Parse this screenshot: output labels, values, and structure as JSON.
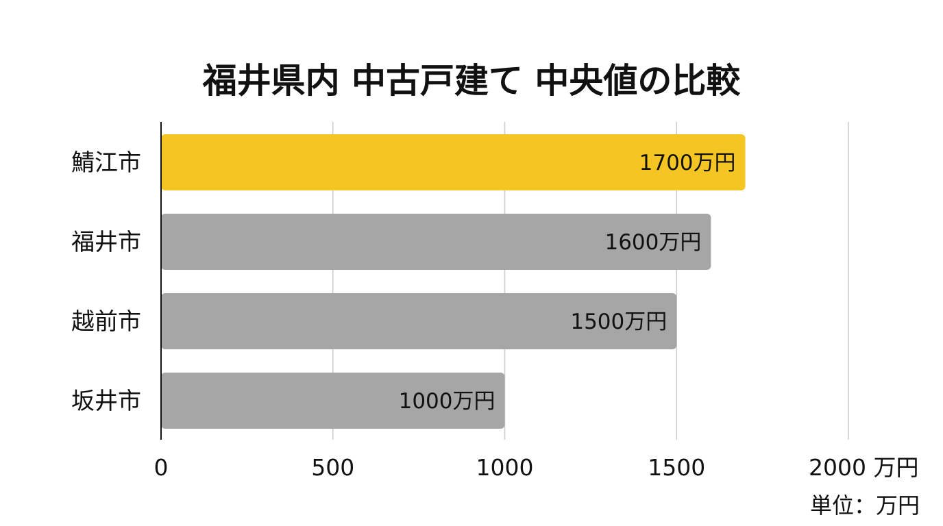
{
  "chart_data": {
    "type": "bar",
    "orientation": "horizontal",
    "title": "福井県内 中古戸建て 中央値の比較",
    "categories": [
      "鯖江市",
      "福井市",
      "越前市",
      "坂井市"
    ],
    "values": [
      1700,
      1600,
      1500,
      1000
    ],
    "data_labels": [
      "1700万円",
      "1600万円",
      "1500万円",
      "1000万円"
    ],
    "xlim": [
      0,
      2000
    ],
    "x_ticks": [
      0,
      500,
      1000,
      1500,
      2000
    ],
    "x_tick_labels": [
      "0",
      "500",
      "1000",
      "1500",
      "2000 万円"
    ],
    "unit_note": "単位：万円",
    "grid": true,
    "colors": {
      "highlight": "#F5C623",
      "default": "#A6A6A6",
      "grid": "#CCCCCC",
      "axis": "#111111"
    },
    "highlight_index": 0
  }
}
